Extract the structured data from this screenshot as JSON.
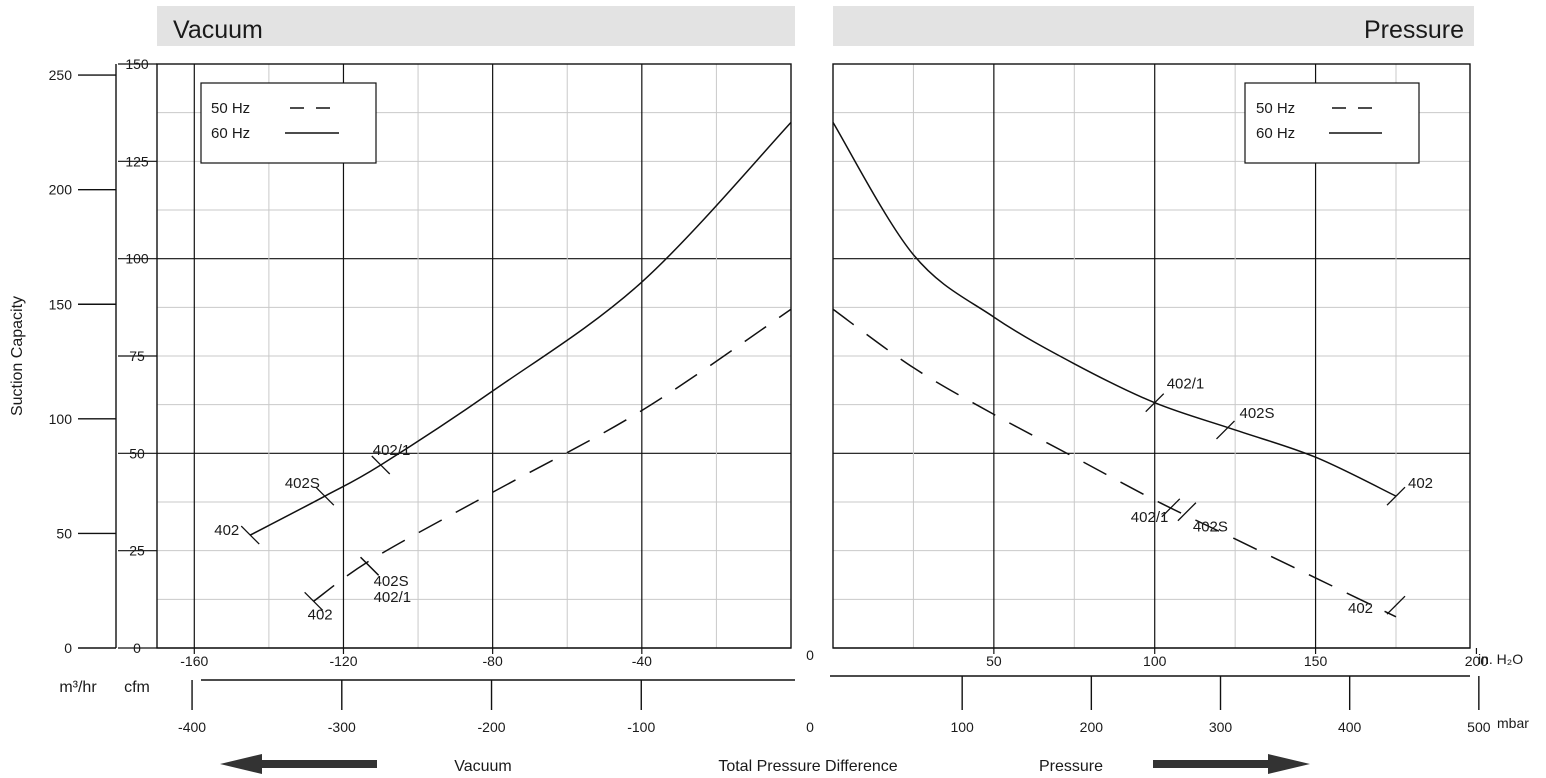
{
  "chart_data": {
    "type": "line",
    "banner_left": "Vacuum",
    "banner_right": "Pressure",
    "y_axis_label": "Suction Capacity",
    "y_unit_m3": "m³/hr",
    "y_unit_cfm": "cfm",
    "y_ticks_m3": [
      "0",
      "50",
      "100",
      "150",
      "200",
      "250"
    ],
    "y_ticks_cfm": [
      "0",
      "25",
      "50",
      "75",
      "100",
      "125",
      "150"
    ],
    "ylim_cfm": [
      0,
      150
    ],
    "vacuum_xlim_inh2o": [
      -170,
      0
    ],
    "vacuum_ticks_inh2o": [
      "-160",
      "-120",
      "-80",
      "-40"
    ],
    "vacuum_ticks_mbar": [
      "-400",
      "-300",
      "-200",
      "-100"
    ],
    "pressure_xlim_inh2o": [
      0,
      200
    ],
    "pressure_ticks_inh2o": [
      "50",
      "100",
      "150",
      "200"
    ],
    "pressure_ticks_mbar": [
      "100",
      "200",
      "300",
      "400",
      "500"
    ],
    "zero_label": "0",
    "unit_inh2o": "in. H₂O",
    "unit_mbar": "mbar",
    "footer_vacuum": "Vacuum",
    "footer_title": "Total Pressure Difference",
    "footer_pressure": "Pressure",
    "legend": {
      "hz50": "50 Hz",
      "hz60": "60 Hz"
    },
    "series": [
      {
        "name": "60 Hz",
        "panel": "vacuum",
        "dash": false,
        "x": [
          -145,
          -125,
          -110,
          -80,
          -40,
          0
        ],
        "y": [
          29,
          39,
          47,
          66,
          94,
          135
        ]
      },
      {
        "name": "50 Hz",
        "panel": "vacuum",
        "dash": true,
        "x": [
          -128,
          -112,
          -80,
          -40,
          0
        ],
        "y": [
          12,
          23,
          40,
          61,
          87
        ]
      },
      {
        "name": "60 Hz",
        "panel": "pressure",
        "dash": false,
        "x": [
          0,
          25,
          50,
          75,
          100,
          125,
          150,
          175
        ],
        "y": [
          135,
          101,
          85,
          73,
          63,
          56,
          49,
          39
        ]
      },
      {
        "name": "50 Hz",
        "panel": "pressure",
        "dash": true,
        "x": [
          0,
          25,
          50,
          75,
          100,
          125,
          150,
          175
        ],
        "y": [
          87,
          72,
          60,
          49,
          38,
          28,
          18,
          8
        ]
      }
    ],
    "annotations": [
      {
        "label": "402",
        "panel": "vacuum",
        "x": -145,
        "y": 29
      },
      {
        "label": "402S",
        "panel": "vacuum",
        "x": -125,
        "y": 39
      },
      {
        "label": "402/1",
        "panel": "vacuum",
        "x": -110,
        "y": 47
      },
      {
        "label": "402",
        "panel": "vacuum",
        "x": -128,
        "y": 12
      },
      {
        "label": "402S",
        "panel": "vacuum",
        "x": -113,
        "y": 21
      },
      {
        "label": "402/1",
        "panel": "vacuum",
        "x": -113,
        "y": 21
      },
      {
        "label": "402/1",
        "panel": "pressure",
        "x": 100,
        "y": 63
      },
      {
        "label": "402S",
        "panel": "pressure",
        "x": 122,
        "y": 56
      },
      {
        "label": "402",
        "panel": "pressure",
        "x": 175,
        "y": 39
      },
      {
        "label": "402/1",
        "panel": "pressure",
        "x": 105,
        "y": 36
      },
      {
        "label": "402S",
        "panel": "pressure",
        "x": 110,
        "y": 35
      },
      {
        "label": "402",
        "panel": "pressure",
        "x": 175,
        "y": 11
      }
    ]
  }
}
